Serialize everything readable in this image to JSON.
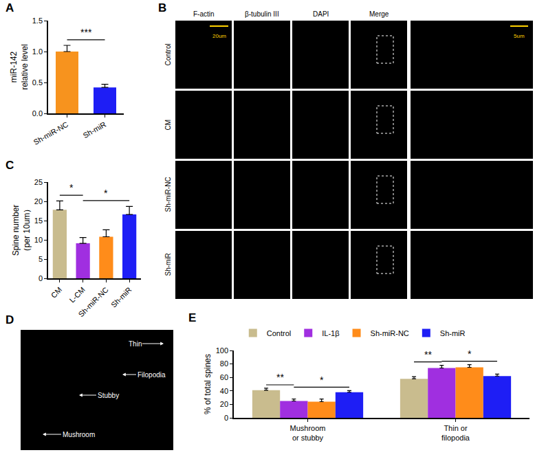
{
  "chart_data": [
    {
      "title": "A",
      "type": "bar",
      "categories": [
        "Sh-miR-NC",
        "Sh-miR"
      ],
      "values": [
        1.0,
        0.42
      ],
      "errors": [
        0.1,
        0.05
      ],
      "colors": [
        "#F7931E",
        "#1E1EF5"
      ],
      "ylabel": "miR-142\nrelative level",
      "ylim": [
        0,
        1.5
      ],
      "yticks": [
        {
          "value": 0,
          "label": "0.0"
        },
        {
          "value": 0.5,
          "label": "0.5"
        },
        {
          "value": 1,
          "label": "1.0"
        },
        {
          "value": 1.5,
          "label": "1.5"
        }
      ],
      "grid": false,
      "annotations": [
        {
          "text": "***",
          "from": "Sh-miR-NC",
          "to": "Sh-miR"
        }
      ]
    },
    {
      "title": "C",
      "type": "bar",
      "categories": [
        "CM",
        "L-CM",
        "Sh-miR-NC",
        "Sh-miR"
      ],
      "values": [
        17.8,
        9.1,
        10.8,
        16.6
      ],
      "errors": [
        2.3,
        1.5,
        1.8,
        2.1
      ],
      "colors": [
        "#C9BC8E",
        "#A02FE0",
        "#FF8C1A",
        "#1E1EF5"
      ],
      "ylabel": "Spine number\n（per 10um）",
      "ylim": [
        0,
        25
      ],
      "yticks": [
        0,
        5,
        10,
        15,
        20,
        25
      ],
      "grid": false,
      "annotations": [
        {
          "text": "*",
          "from": "CM",
          "to": "L-CM"
        },
        {
          "text": "*",
          "from": "L-CM",
          "to": "Sh-miR"
        }
      ]
    },
    {
      "title": "E",
      "type": "bar",
      "categories": [
        "Mushroom\nor stubby",
        "Thin or\nfilopodia"
      ],
      "series": [
        {
          "name": "Control",
          "color": "#C9BC8E",
          "values": [
            41,
            58
          ],
          "errors": [
            3,
            3
          ]
        },
        {
          "name": "IL-1β",
          "color": "#A02FE0",
          "values": [
            25,
            74
          ],
          "errors": [
            3,
            4
          ]
        },
        {
          "name": "Sh-miR-NC",
          "color": "#FF8C1A",
          "values": [
            24,
            75
          ],
          "errors": [
            4,
            4
          ]
        },
        {
          "name": "Sh-miR",
          "color": "#1E1EF5",
          "values": [
            38,
            62
          ],
          "errors": [
            2.5,
            3
          ]
        }
      ],
      "ylabel": "% of total spines",
      "ylim": [
        0,
        100
      ],
      "yticks": [
        0,
        20,
        40,
        60,
        80,
        100
      ],
      "grid": false,
      "legend": "top",
      "annotations": [
        {
          "text": "**",
          "category": "Mushroom\nor stubby",
          "from": "Control",
          "to": "IL-1β"
        },
        {
          "text": "*",
          "category": "Mushroom\nor stubby",
          "from": "IL-1β",
          "to": "Sh-miR"
        },
        {
          "text": "**",
          "category": "Thin or\nfilopodia",
          "from": "Control",
          "to": "IL-1β"
        },
        {
          "text": "*",
          "category": "Thin or\nfilopodia",
          "from": "IL-1β",
          "to": "Sh-miR"
        }
      ]
    }
  ],
  "images": [
    {
      "title": "B",
      "columns": [
        "F-actin",
        "β-tubulin III",
        "DAPI",
        "Merge"
      ],
      "rows": [
        "Control",
        "CM",
        "Sh-miR-NC",
        "Sh-miR"
      ],
      "scale_bars": [
        "20um",
        "5um"
      ]
    },
    {
      "title": "D",
      "labels": [
        "Thin",
        "Filopodia",
        "Stubby",
        "Mushroom"
      ]
    }
  ]
}
